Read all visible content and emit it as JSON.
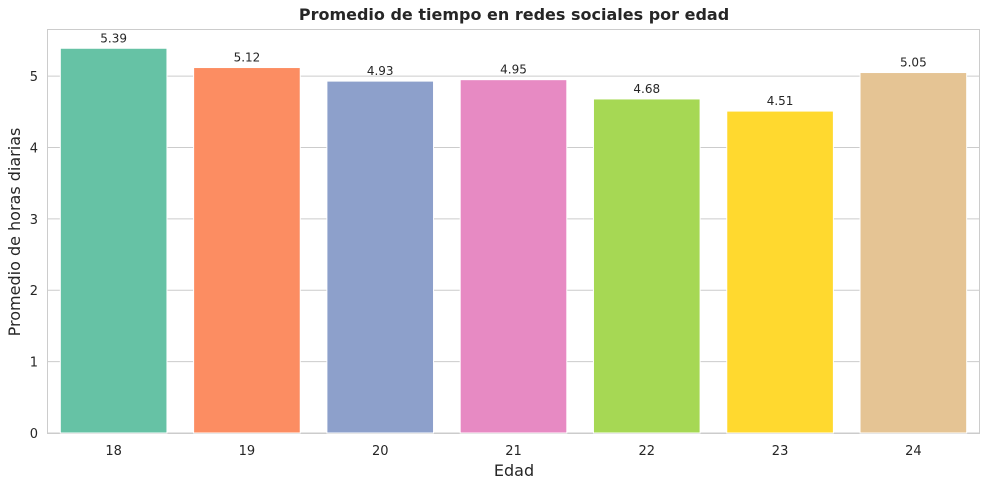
{
  "chart_data": {
    "type": "bar",
    "title": "Promedio de tiempo en redes sociales por edad",
    "xlabel": "Edad",
    "ylabel": "Promedio de horas diarias",
    "categories": [
      "18",
      "19",
      "20",
      "21",
      "22",
      "23",
      "24"
    ],
    "values": [
      5.39,
      5.12,
      4.93,
      4.95,
      4.68,
      4.51,
      5.05
    ],
    "data_labels": [
      "5.39",
      "5.12",
      "4.93",
      "4.95",
      "4.68",
      "4.51",
      "5.05"
    ],
    "colors": [
      "#66c2a5",
      "#fc8d62",
      "#8da0cb",
      "#e78ac3",
      "#a6d854",
      "#ffd92f",
      "#e5c494"
    ],
    "ylim": [
      0,
      5.66
    ],
    "yticks": [
      0,
      1,
      2,
      3,
      4,
      5
    ],
    "grid": true,
    "legend": "none"
  }
}
